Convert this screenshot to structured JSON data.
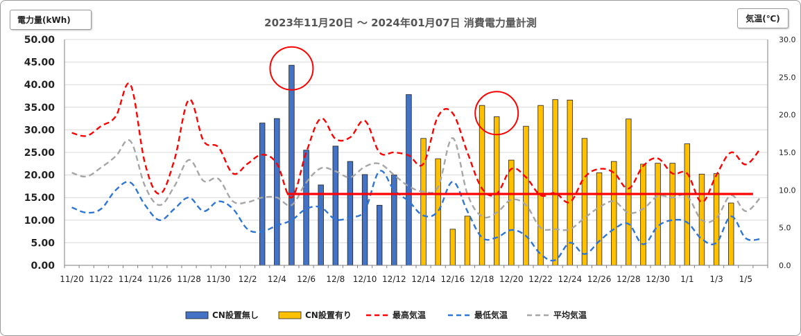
{
  "title": "2023年11月20日 ～ 2024年01月07日 消費電力量計測",
  "y_left_label": "電力量(kWh)",
  "y_right_label": "気温(℃)",
  "colors": {
    "cn_without": "#4472c4",
    "cn_with": "#ffc000",
    "temp_max": "#ff0000",
    "temp_min": "#2e75d6",
    "temp_avg": "#a6a6a6",
    "highlight": "#ff0000"
  },
  "chart_data": {
    "type": "bar",
    "categories": [
      "11/20",
      "11/21",
      "11/22",
      "11/23",
      "11/24",
      "11/25",
      "11/26",
      "11/27",
      "11/28",
      "11/29",
      "11/30",
      "12/1",
      "12/2",
      "12/3",
      "12/4",
      "12/5",
      "12/6",
      "12/7",
      "12/8",
      "12/9",
      "12/10",
      "12/11",
      "12/12",
      "12/13",
      "12/14",
      "12/15",
      "12/16",
      "12/17",
      "12/18",
      "12/19",
      "12/20",
      "12/21",
      "12/22",
      "12/23",
      "12/24",
      "12/25",
      "12/26",
      "12/27",
      "12/28",
      "12/29",
      "12/30",
      "12/31",
      "1/1",
      "1/2",
      "1/3",
      "1/4",
      "1/5",
      "1/6"
    ],
    "x_tick_labels": [
      "11/20",
      "11/22",
      "11/24",
      "11/26",
      "11/28",
      "11/30",
      "12/2",
      "12/4",
      "12/6",
      "12/8",
      "12/10",
      "12/12",
      "12/14",
      "12/16",
      "12/18",
      "12/20",
      "12/22",
      "12/24",
      "12/26",
      "12/28",
      "12/30",
      "1/1",
      "1/3",
      "1/5"
    ],
    "x_tick_every": 2,
    "y_left_ticks": [
      "0.00",
      "5.00",
      "10.00",
      "15.00",
      "20.00",
      "25.00",
      "30.00",
      "35.00",
      "40.00",
      "45.00",
      "50.00"
    ],
    "y_right_ticks": [
      "0.0",
      "5.0",
      "10.0",
      "15.0",
      "20.0",
      "25.0",
      "30.0"
    ],
    "ylim_left": [
      0,
      50
    ],
    "ylim_right": [
      0,
      30
    ],
    "series": [
      {
        "name": "CN設置無し",
        "kind": "bar",
        "axis": "left",
        "values": [
          null,
          null,
          null,
          null,
          null,
          null,
          null,
          null,
          null,
          null,
          null,
          null,
          null,
          31.5,
          32.5,
          44.3,
          25.5,
          17.8,
          26.4,
          23.0,
          20.1,
          13.3,
          20.0,
          37.8,
          null,
          null,
          null,
          null,
          null,
          null,
          null,
          null,
          null,
          null,
          null,
          null,
          null,
          null,
          null,
          null,
          null,
          null,
          null,
          null,
          null,
          null,
          null,
          null
        ]
      },
      {
        "name": "CN設置有り",
        "kind": "bar",
        "axis": "left",
        "values": [
          null,
          null,
          null,
          null,
          null,
          null,
          null,
          null,
          null,
          null,
          null,
          null,
          null,
          null,
          null,
          null,
          null,
          null,
          null,
          null,
          null,
          null,
          null,
          null,
          28.1,
          23.6,
          8.0,
          10.9,
          35.4,
          32.9,
          23.3,
          30.8,
          35.4,
          36.7,
          36.6,
          28.1,
          20.5,
          23.0,
          32.4,
          22.4,
          22.6,
          22.6,
          26.9,
          20.2,
          20.3,
          13.8,
          null,
          null
        ]
      },
      {
        "name": "最高気温",
        "kind": "line",
        "axis": "right",
        "dash": "8,5",
        "values": [
          17.6,
          17.2,
          18.5,
          19.8,
          24,
          13.5,
          9.5,
          14,
          22,
          16.5,
          15.7,
          12.2,
          13.5,
          14.7,
          13.5,
          9,
          15,
          19.5,
          16.8,
          17,
          19.2,
          15,
          15,
          14.6,
          13.5,
          19.8,
          20.2,
          15,
          10.2,
          9.5,
          12.8,
          11.7,
          9.3,
          9.6,
          8.4,
          11.7,
          12.8,
          12.3,
          10.2,
          13.2,
          14.2,
          12.2,
          12.2,
          8.4,
          12,
          15,
          13.4,
          15.5
        ]
      },
      {
        "name": "最低気温",
        "kind": "line",
        "axis": "right",
        "dash": "8,5",
        "values": [
          7.7,
          7,
          7.5,
          10,
          11,
          8,
          6,
          7.5,
          9,
          7.2,
          8.5,
          7.5,
          4.8,
          4.5,
          5.3,
          6,
          7.5,
          7.7,
          6.1,
          6.4,
          7.3,
          12.5,
          10,
          8.5,
          6.6,
          7.2,
          11.1,
          7.2,
          3.7,
          3.7,
          4.7,
          3.9,
          1.5,
          0.7,
          3,
          1.5,
          3.2,
          4.8,
          5.5,
          2.8,
          5.2,
          6,
          5.7,
          3.5,
          3,
          6.5,
          3.6,
          3.5
        ]
      },
      {
        "name": "平均気温",
        "kind": "line",
        "axis": "right",
        "dash": "8,5",
        "values": [
          12.3,
          11.8,
          13,
          14.5,
          16.5,
          10.5,
          8,
          10.5,
          14,
          11.2,
          11.5,
          8.5,
          8.4,
          9,
          9,
          8,
          11,
          12.9,
          12.5,
          11.7,
          13.1,
          13.5,
          12,
          10.5,
          9.8,
          10.4,
          16.9,
          9.5,
          6.5,
          7,
          8.7,
          8,
          5,
          4.8,
          4.8,
          6.3,
          7.7,
          8.5,
          7,
          7.5,
          9.2,
          9,
          9.2,
          6,
          6.3,
          9.3,
          7.2,
          9
        ]
      },
      {
        "name": "",
        "kind": "hline",
        "axis": "left",
        "value": 15.8,
        "x_start": 15,
        "x_end": 47
      }
    ],
    "highlights": [
      {
        "shape": "circle",
        "category": "12/5",
        "value": 43.6
      },
      {
        "shape": "circle",
        "category": "12/19",
        "value": 33.7
      }
    ],
    "legend": [
      "CN設置無し",
      "CN設置有り",
      "最高気温",
      "最低気温",
      "平均気温"
    ],
    "legend_position": "bottom",
    "grid": true
  }
}
